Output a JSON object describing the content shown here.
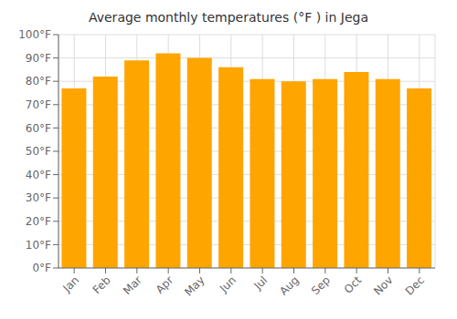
{
  "chart_data": {
    "type": "bar",
    "title": "Average monthly temperatures (°F ) in Jega",
    "categories": [
      "Jan",
      "Feb",
      "Mar",
      "Apr",
      "May",
      "Jun",
      "Jul",
      "Aug",
      "Sep",
      "Oct",
      "Nov",
      "Dec"
    ],
    "values": [
      77,
      82,
      89,
      92,
      90,
      86,
      81,
      80,
      81,
      84,
      81,
      77
    ],
    "color": "#FFA500",
    "ylim": [
      0,
      100
    ],
    "yticks": [
      {
        "value": 0,
        "label": "0°F"
      },
      {
        "value": 10,
        "label": "10°F"
      },
      {
        "value": 20,
        "label": "20°F"
      },
      {
        "value": 30,
        "label": "30°F"
      },
      {
        "value": 40,
        "label": "40°F"
      },
      {
        "value": 50,
        "label": "50°F"
      },
      {
        "value": 60,
        "label": "60°F"
      },
      {
        "value": 70,
        "label": "70°F"
      },
      {
        "value": 80,
        "label": "80°F"
      },
      {
        "value": 90,
        "label": "90°F"
      },
      {
        "value": 100,
        "label": "100°F"
      }
    ],
    "grid": true
  }
}
